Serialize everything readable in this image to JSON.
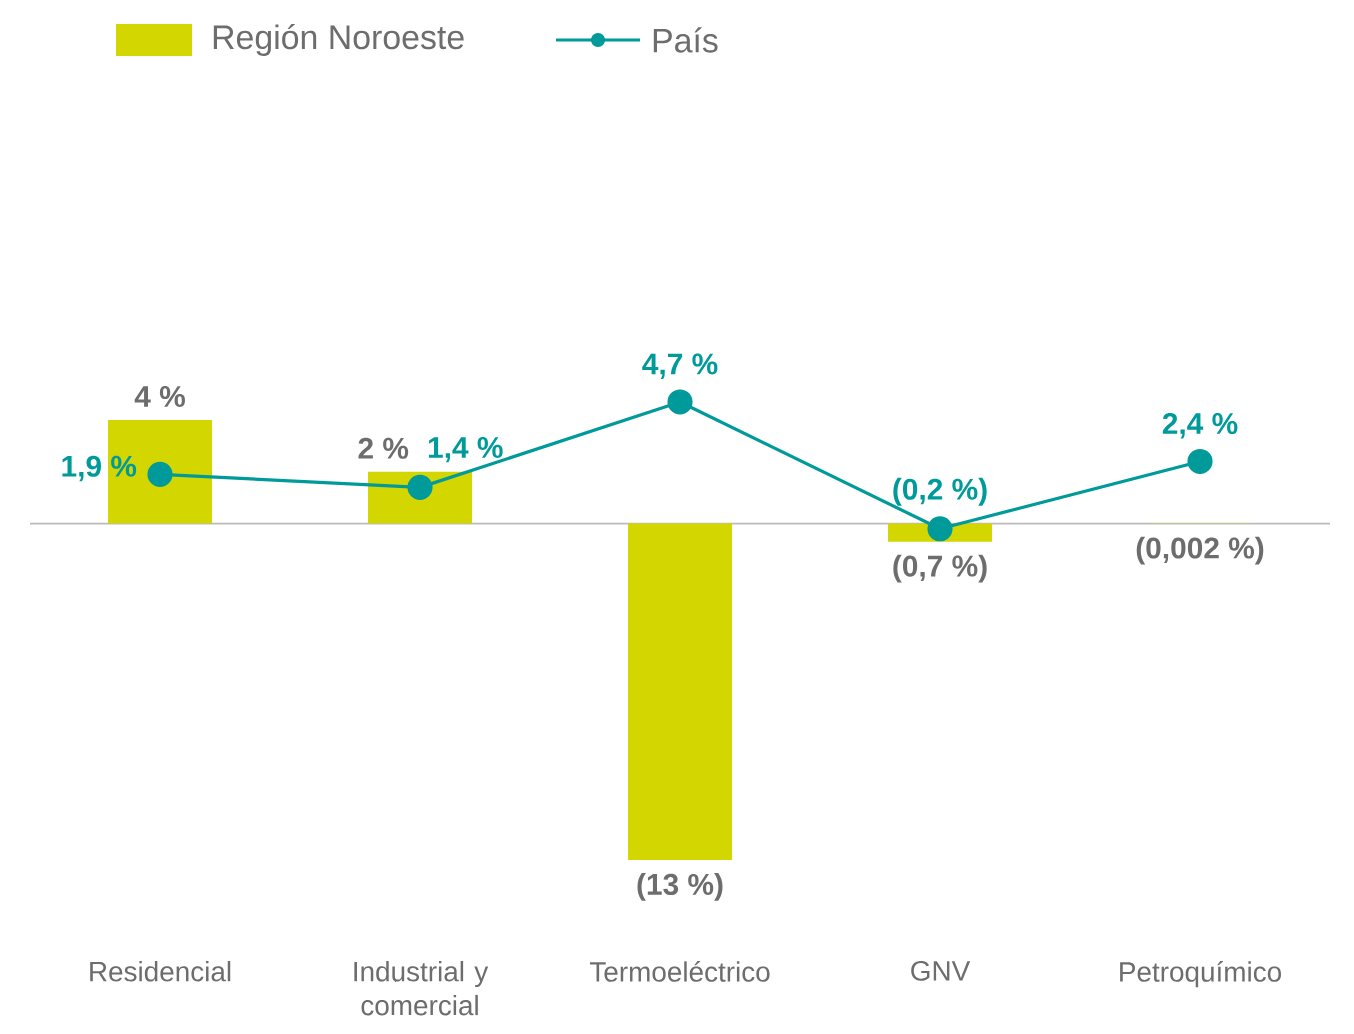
{
  "chart_data": {
    "type": "bar",
    "categories": [
      "Residencial",
      "Industrial y comercial",
      "Termoeléctrico",
      "GNV",
      "Petroquímico"
    ],
    "legend": "top left",
    "marker": "circle",
    "series": [
      {
        "name": "Región Noroeste",
        "color": "#d4d600",
        "values": [
          4,
          2,
          -13,
          -0.7,
          -0.002
        ],
        "value_labels": [
          "4 %",
          "2 %",
          "(13 %)",
          "(0,7 %)",
          "(0,002 %)"
        ]
      },
      {
        "name": "País",
        "type": "line",
        "color": "#009a9a",
        "values": [
          1.9,
          1.4,
          4.7,
          -0.2,
          2.4
        ],
        "value_labels": [
          "1,9 %",
          "1,4 %",
          "4,7 %",
          "(0,2 %)",
          "2,4 %"
        ]
      }
    ]
  }
}
